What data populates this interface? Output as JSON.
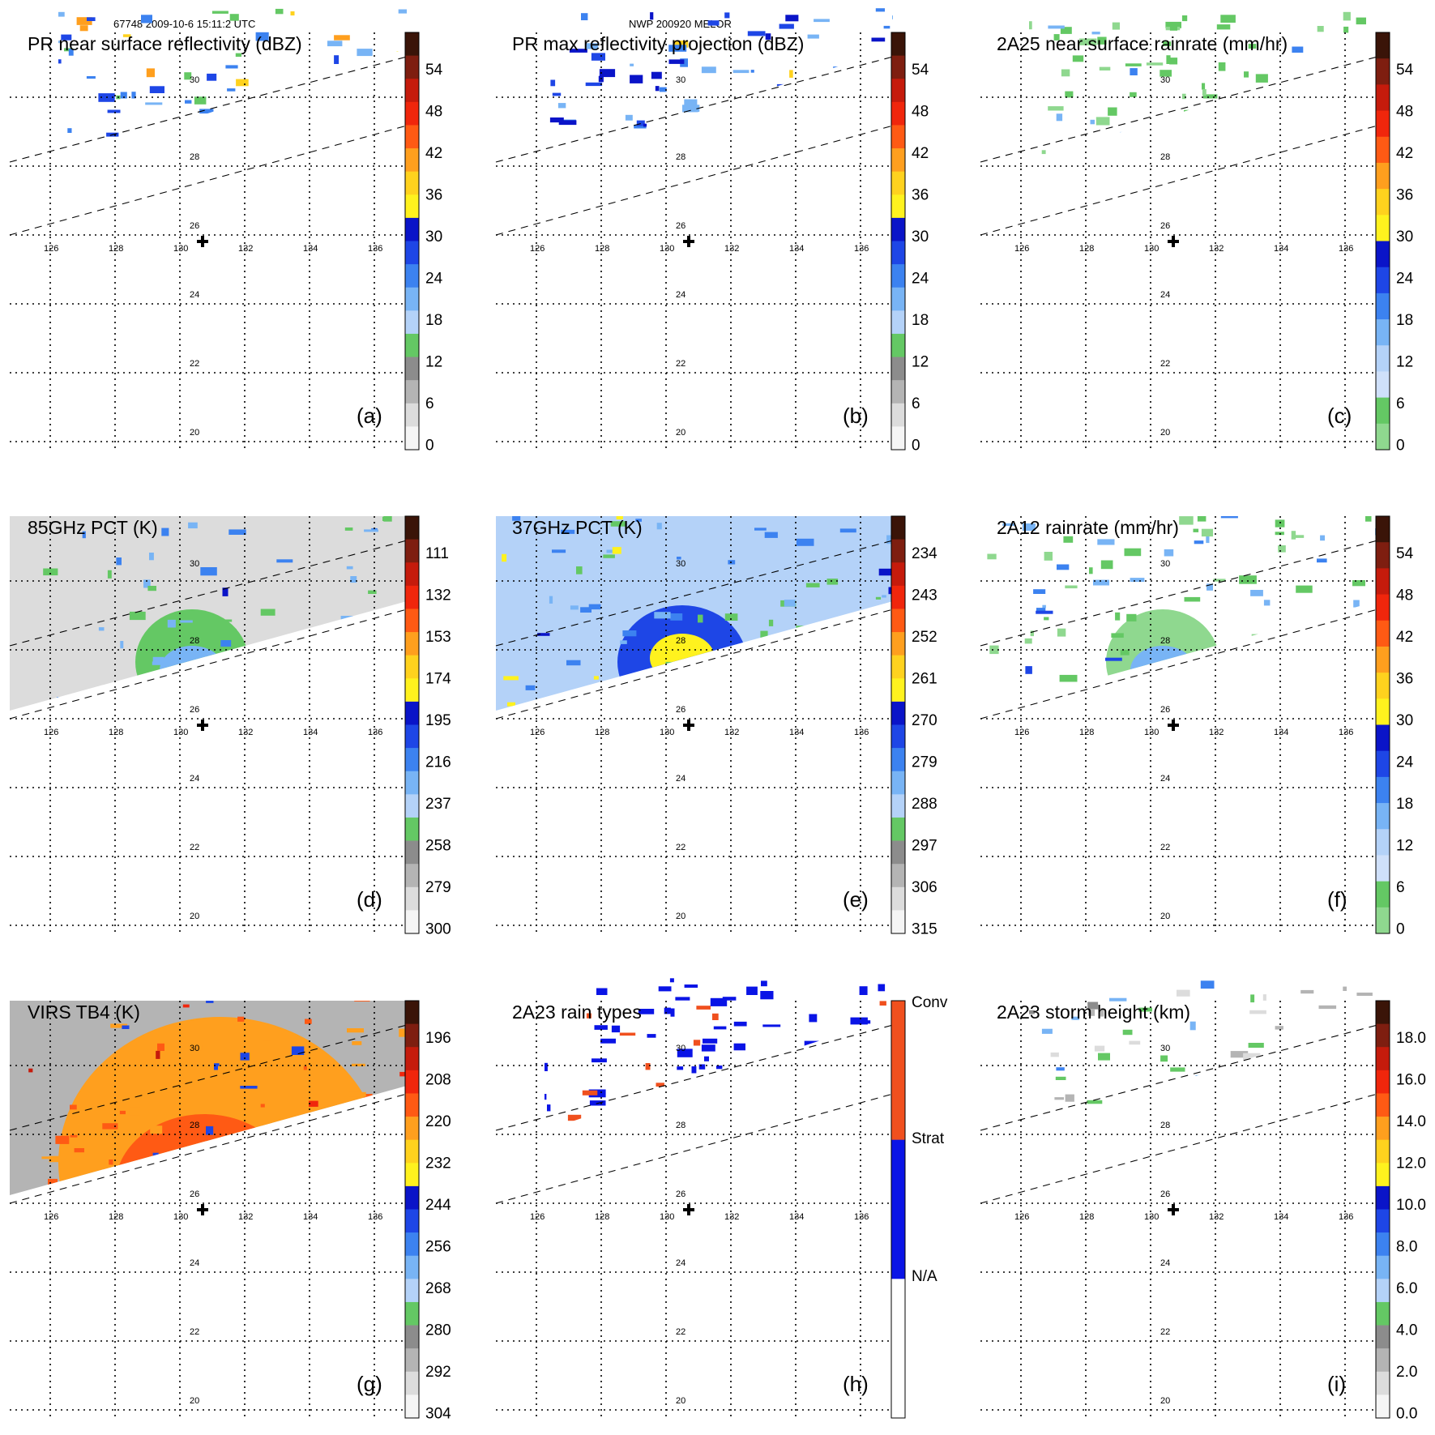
{
  "header": {
    "orbit_info": "67748 2009-10-6 15:11:2 UTC",
    "storm_info": "NWP 200920 MELOR"
  },
  "map": {
    "lon_labels": [
      "126",
      "128",
      "130",
      "132",
      "134",
      "136"
    ],
    "lat_labels": [
      "30",
      "28",
      "26",
      "24",
      "22",
      "20"
    ]
  },
  "panels": [
    {
      "id": "a",
      "title": "PR near surface reflectivity (dBZ)",
      "label": "(a)",
      "colorbar": {
        "ticks": [
          "54",
          "48",
          "42",
          "36",
          "30",
          "24",
          "18",
          "12",
          "6",
          "0"
        ],
        "colors": [
          "#3a1408",
          "#7e1e10",
          "#c51b0c",
          "#f0260c",
          "#ff5a14",
          "#ff9f1e",
          "#ffd21e",
          "#fff21e",
          "#0a14c8",
          "#1e46e6",
          "#3c82f0",
          "#78b4f5",
          "#b4d2f8",
          "#64c864",
          "#8c8c8c",
          "#b4b4b4",
          "#dcdcdc",
          "#f5f5f5"
        ]
      }
    },
    {
      "id": "b",
      "title": "PR max reflectivity projection (dBZ)",
      "label": "(b)",
      "colorbar": {
        "ticks": [
          "54",
          "48",
          "42",
          "36",
          "30",
          "24",
          "18",
          "12",
          "6",
          "0"
        ],
        "colors": [
          "#3a1408",
          "#7e1e10",
          "#c51b0c",
          "#f0260c",
          "#ff5a14",
          "#ff9f1e",
          "#ffd21e",
          "#fff21e",
          "#0a14c8",
          "#1e46e6",
          "#3c82f0",
          "#78b4f5",
          "#b4d2f8",
          "#64c864",
          "#8c8c8c",
          "#b4b4b4",
          "#dcdcdc",
          "#f5f5f5"
        ]
      }
    },
    {
      "id": "c",
      "title": "2A25 near surface rainrate (mm/hr)",
      "label": "(c)",
      "colorbar": {
        "ticks": [
          "54",
          "48",
          "42",
          "36",
          "30",
          "24",
          "18",
          "12",
          "6",
          "0"
        ],
        "colors": [
          "#3a1408",
          "#7e1e10",
          "#c51b0c",
          "#f0260c",
          "#ff5a14",
          "#ff9f1e",
          "#ffd21e",
          "#fff21e",
          "#0a14c8",
          "#1e46e6",
          "#3c82f0",
          "#78b4f5",
          "#b4d2f8",
          "#cfe0fa",
          "#64c864",
          "#8fd88f"
        ]
      }
    },
    {
      "id": "d",
      "title": "85GHz PCT (K)",
      "label": "(d)",
      "colorbar": {
        "ticks": [
          "111",
          "132",
          "153",
          "174",
          "195",
          "216",
          "237",
          "258",
          "279",
          "300"
        ],
        "colors": [
          "#3a1408",
          "#7e1e10",
          "#c51b0c",
          "#f0260c",
          "#ff5a14",
          "#ff9f1e",
          "#ffd21e",
          "#fff21e",
          "#0a14c8",
          "#1e46e6",
          "#3c82f0",
          "#78b4f5",
          "#b4d2f8",
          "#64c864",
          "#8c8c8c",
          "#b4b4b4",
          "#dcdcdc",
          "#f5f5f5"
        ]
      }
    },
    {
      "id": "e",
      "title": "37GHz PCT (K)",
      "label": "(e)",
      "colorbar": {
        "ticks": [
          "234",
          "243",
          "252",
          "261",
          "270",
          "279",
          "288",
          "297",
          "306",
          "315"
        ],
        "colors": [
          "#3a1408",
          "#7e1e10",
          "#c51b0c",
          "#f0260c",
          "#ff5a14",
          "#ff9f1e",
          "#ffd21e",
          "#fff21e",
          "#0a14c8",
          "#1e46e6",
          "#3c82f0",
          "#78b4f5",
          "#b4d2f8",
          "#64c864",
          "#8c8c8c",
          "#b4b4b4",
          "#dcdcdc",
          "#f5f5f5"
        ]
      }
    },
    {
      "id": "f",
      "title": "2A12 rainrate (mm/hr)",
      "label": "(f)",
      "colorbar": {
        "ticks": [
          "54",
          "48",
          "42",
          "36",
          "30",
          "24",
          "18",
          "12",
          "6",
          "0"
        ],
        "colors": [
          "#3a1408",
          "#7e1e10",
          "#c51b0c",
          "#f0260c",
          "#ff5a14",
          "#ff9f1e",
          "#ffd21e",
          "#fff21e",
          "#0a14c8",
          "#1e46e6",
          "#3c82f0",
          "#78b4f5",
          "#b4d2f8",
          "#cfe0fa",
          "#64c864",
          "#8fd88f"
        ]
      }
    },
    {
      "id": "g",
      "title": "VIRS TB4 (K)",
      "label": "(g)",
      "colorbar": {
        "ticks": [
          "196",
          "208",
          "220",
          "232",
          "244",
          "256",
          "268",
          "280",
          "292",
          "304"
        ],
        "colors": [
          "#3a1408",
          "#7e1e10",
          "#c51b0c",
          "#f0260c",
          "#ff5a14",
          "#ff9f1e",
          "#ffd21e",
          "#fff21e",
          "#0a14c8",
          "#1e46e6",
          "#3c82f0",
          "#78b4f5",
          "#b4d2f8",
          "#64c864",
          "#8c8c8c",
          "#b4b4b4",
          "#dcdcdc",
          "#f5f5f5"
        ]
      }
    },
    {
      "id": "h",
      "title": "2A23 rain types",
      "label": "(h)",
      "colorbar": {
        "ticks": [
          "Conv",
          "Strat",
          "N/A"
        ],
        "colors": [
          "#f0501e",
          "#0a14e6",
          "#ffffff"
        ]
      }
    },
    {
      "id": "i",
      "title": "2A23 storm height (km)",
      "label": "(i)",
      "colorbar": {
        "ticks": [
          "18.0",
          "16.0",
          "14.0",
          "12.0",
          "10.0",
          "8.0",
          "6.0",
          "4.0",
          "2.0",
          "0.0"
        ],
        "colors": [
          "#3a1408",
          "#7e1e10",
          "#c51b0c",
          "#f0260c",
          "#ff5a14",
          "#ff9f1e",
          "#ffd21e",
          "#fff21e",
          "#0a14c8",
          "#1e46e6",
          "#3c82f0",
          "#78b4f5",
          "#b4d2f8",
          "#64c864",
          "#8c8c8c",
          "#b4b4b4",
          "#dcdcdc",
          "#f5f5f5"
        ]
      }
    }
  ]
}
